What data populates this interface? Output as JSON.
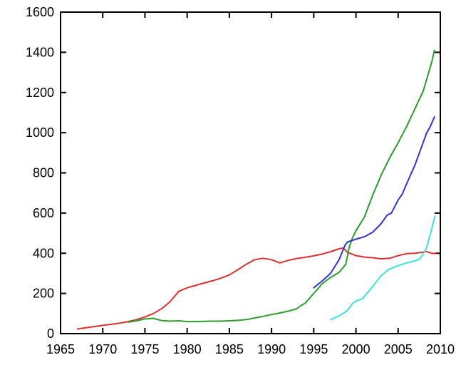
{
  "chart_data": {
    "type": "line",
    "title": "",
    "xlabel": "",
    "ylabel": "",
    "xlim": [
      1965,
      2010
    ],
    "ylim": [
      0,
      1600
    ],
    "x_ticks": [
      1965,
      1970,
      1975,
      1980,
      1985,
      1990,
      1995,
      2000,
      2005,
      2010
    ],
    "y_ticks": [
      0,
      200,
      400,
      600,
      800,
      1000,
      1200,
      1400,
      1600
    ],
    "grid": false,
    "legend_position": "none",
    "background_color": "#ffffff",
    "axis_color": "#000000",
    "series": [
      {
        "name": "red-series",
        "color": "#dc2f2f",
        "points": [
          [
            1967,
            23
          ],
          [
            1968,
            29
          ],
          [
            1969,
            35
          ],
          [
            1970,
            41
          ],
          [
            1971,
            46
          ],
          [
            1972,
            52
          ],
          [
            1973,
            60
          ],
          [
            1974,
            70
          ],
          [
            1975,
            83
          ],
          [
            1976,
            100
          ],
          [
            1977,
            125
          ],
          [
            1978,
            160
          ],
          [
            1979,
            210
          ],
          [
            1980,
            228
          ],
          [
            1981,
            240
          ],
          [
            1982,
            252
          ],
          [
            1983,
            263
          ],
          [
            1984,
            276
          ],
          [
            1985,
            292
          ],
          [
            1986,
            318
          ],
          [
            1987,
            345
          ],
          [
            1988,
            368
          ],
          [
            1989,
            375
          ],
          [
            1990,
            368
          ],
          [
            1991,
            352
          ],
          [
            1992,
            365
          ],
          [
            1993,
            374
          ],
          [
            1994,
            380
          ],
          [
            1995,
            387
          ],
          [
            1996,
            396
          ],
          [
            1997,
            408
          ],
          [
            1998,
            422
          ],
          [
            1998.5,
            426
          ],
          [
            1999,
            404
          ],
          [
            2000,
            388
          ],
          [
            2001,
            381
          ],
          [
            2002,
            378
          ],
          [
            2003,
            372
          ],
          [
            2004,
            375
          ],
          [
            2005,
            388
          ],
          [
            2006,
            398
          ],
          [
            2007,
            400
          ],
          [
            2008,
            406
          ],
          [
            2008.3,
            409
          ],
          [
            2009,
            400
          ],
          [
            2009.5,
            398
          ]
        ]
      },
      {
        "name": "green-series",
        "color": "#2d9b2d",
        "points": [
          [
            1973,
            57
          ],
          [
            1974,
            64
          ],
          [
            1975,
            73
          ],
          [
            1976,
            76
          ],
          [
            1977,
            65
          ],
          [
            1978,
            62
          ],
          [
            1979,
            64
          ],
          [
            1980,
            60
          ],
          [
            1981,
            60
          ],
          [
            1982,
            61
          ],
          [
            1983,
            62
          ],
          [
            1984,
            62
          ],
          [
            1985,
            64
          ],
          [
            1986,
            66
          ],
          [
            1987,
            70
          ],
          [
            1988,
            78
          ],
          [
            1989,
            86
          ],
          [
            1990,
            95
          ],
          [
            1991,
            103
          ],
          [
            1992,
            112
          ],
          [
            1993,
            124
          ],
          [
            1993.5,
            140
          ],
          [
            1994,
            152
          ],
          [
            1995,
            200
          ],
          [
            1996,
            248
          ],
          [
            1997,
            280
          ],
          [
            1998,
            305
          ],
          [
            1998.8,
            345
          ],
          [
            1999.2,
            430
          ],
          [
            1999.6,
            478
          ],
          [
            2000,
            512
          ],
          [
            2001,
            580
          ],
          [
            2002,
            690
          ],
          [
            2003,
            790
          ],
          [
            2004,
            875
          ],
          [
            2005,
            950
          ],
          [
            2006,
            1030
          ],
          [
            2007,
            1120
          ],
          [
            2008,
            1210
          ],
          [
            2009,
            1355
          ],
          [
            2009.3,
            1410
          ]
        ]
      },
      {
        "name": "blue-series",
        "color": "#3434cd",
        "points": [
          [
            1995,
            228
          ],
          [
            1996,
            262
          ],
          [
            1997,
            300
          ],
          [
            1998,
            368
          ],
          [
            1998.7,
            440
          ],
          [
            1999,
            456
          ],
          [
            2000,
            470
          ],
          [
            2001,
            482
          ],
          [
            2002,
            505
          ],
          [
            2003,
            548
          ],
          [
            2003.7,
            590
          ],
          [
            2004.2,
            600
          ],
          [
            2005,
            665
          ],
          [
            2005.5,
            695
          ],
          [
            2006,
            745
          ],
          [
            2007,
            840
          ],
          [
            2008,
            955
          ],
          [
            2008.4,
            1000
          ],
          [
            2008.8,
            1030
          ],
          [
            2009.3,
            1078
          ]
        ]
      },
      {
        "name": "cyan-series",
        "color": "#3fe0e0",
        "points": [
          [
            1997,
            70
          ],
          [
            1998,
            88
          ],
          [
            1999,
            115
          ],
          [
            1999.6,
            150
          ],
          [
            2000,
            163
          ],
          [
            2000.7,
            172
          ],
          [
            2001,
            185
          ],
          [
            2002,
            235
          ],
          [
            2003,
            290
          ],
          [
            2004,
            322
          ],
          [
            2005,
            338
          ],
          [
            2006,
            352
          ],
          [
            2007,
            362
          ],
          [
            2007.5,
            370
          ],
          [
            2008,
            398
          ],
          [
            2008.4,
            430
          ],
          [
            2009,
            525
          ],
          [
            2009.35,
            585
          ]
        ]
      }
    ]
  }
}
